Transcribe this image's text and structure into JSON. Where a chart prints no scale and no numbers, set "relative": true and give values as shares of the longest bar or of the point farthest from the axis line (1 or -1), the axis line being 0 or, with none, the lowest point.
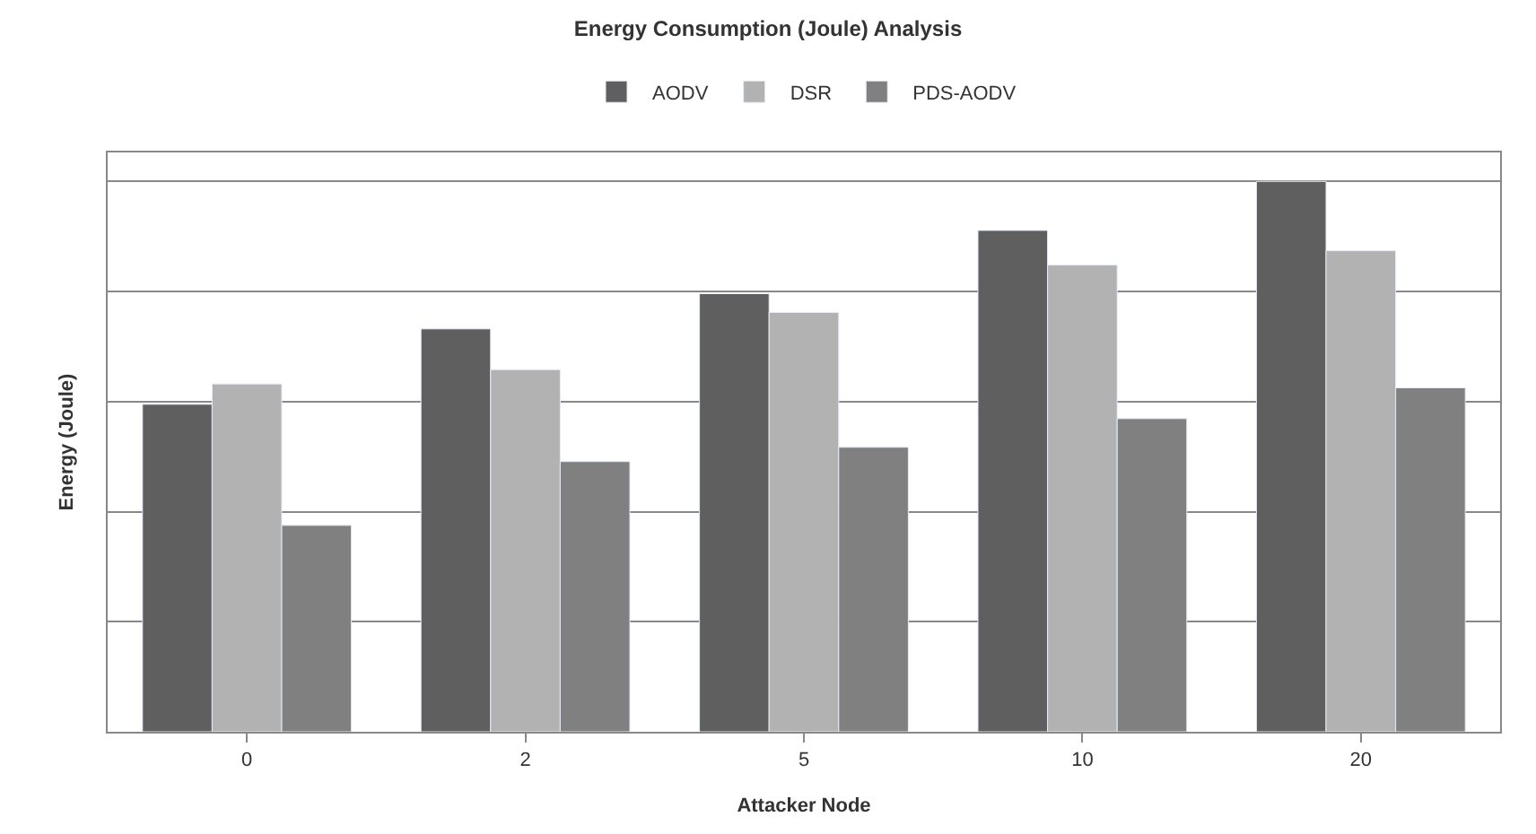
{
  "chart_data": {
    "type": "bar",
    "title": "Energy Consumption (Joule) Analysis",
    "xlabel": "Attacker Node",
    "ylabel": "Energy (Joule)",
    "categories": [
      "0",
      "2",
      "5",
      "10",
      "20"
    ],
    "relative": true,
    "grid": "y",
    "legend": "top",
    "series": [
      {
        "name": "AODV",
        "color": "#5f5f5f",
        "values": [
          0.595,
          0.732,
          0.796,
          0.911,
          1
        ]
      },
      {
        "name": "DSR",
        "color": "#b2b2b2",
        "values": [
          0.632,
          0.658,
          0.762,
          0.848,
          0.874
        ]
      },
      {
        "name": "PDS-AODV",
        "color": "#808080",
        "values": [
          0.375,
          0.491,
          0.517,
          0.569,
          0.625
        ]
      }
    ]
  }
}
